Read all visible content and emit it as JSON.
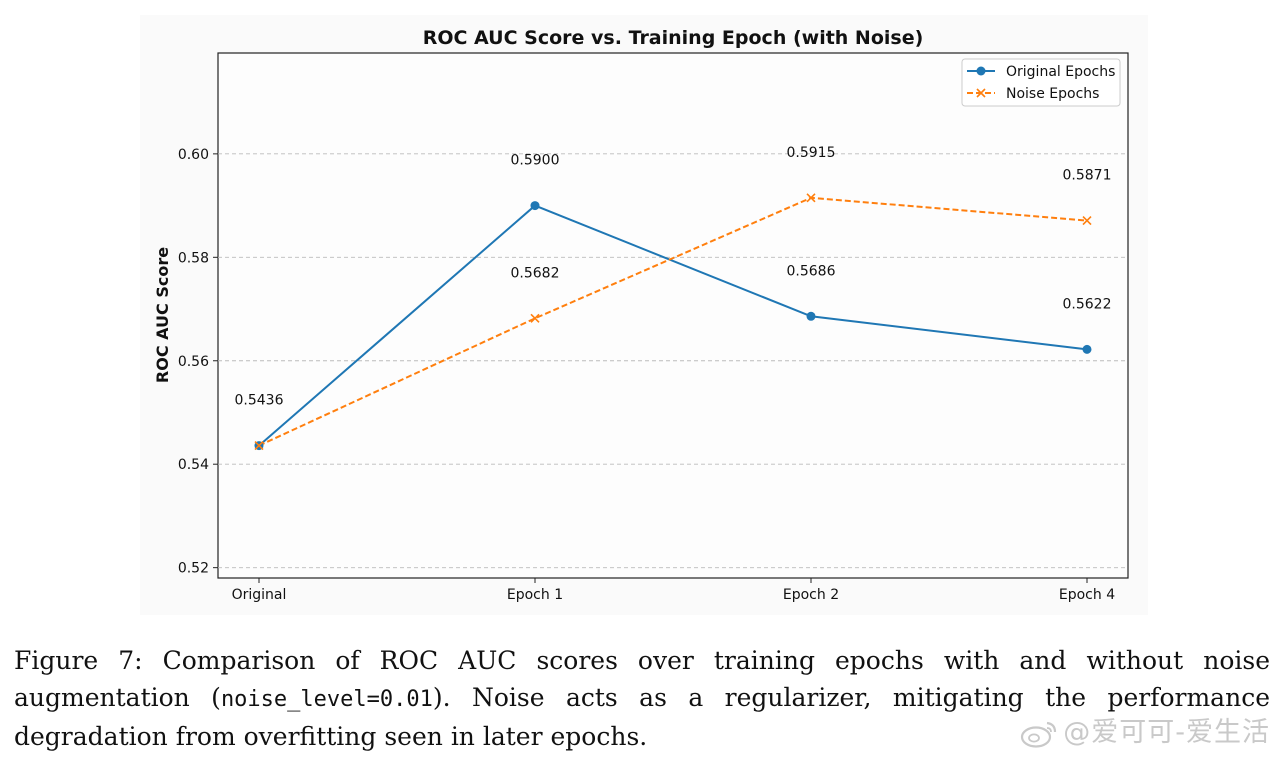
{
  "chart_data": {
    "type": "line",
    "title": "ROC AUC Score vs. Training Epoch (with Noise)",
    "xlabel": "",
    "ylabel": "ROC AUC Score",
    "categories": [
      "Original",
      "Epoch 1",
      "Epoch 2",
      "Epoch 4"
    ],
    "ylim": [
      0.518,
      0.6195
    ],
    "yticks": [
      0.52,
      0.54,
      0.56,
      0.58,
      0.6
    ],
    "ytick_labels": [
      "0.52",
      "0.54",
      "0.56",
      "0.58",
      "0.60"
    ],
    "grid": "horizontal dashed",
    "legend_position": "upper right",
    "series": [
      {
        "name": "Original Epochs",
        "values": [
          0.5436,
          0.59,
          0.5686,
          0.5622
        ],
        "labels": [
          "0.5436",
          "0.5900",
          "0.5686",
          "0.5622"
        ],
        "color": "#1f77b4",
        "style": "solid",
        "marker": "circle"
      },
      {
        "name": "Noise Epochs",
        "values": [
          0.5436,
          0.5682,
          0.5915,
          0.5871
        ],
        "labels": [
          "",
          "0.5682",
          "0.5915",
          "0.5871"
        ],
        "color": "#ff7f0e",
        "style": "dashed",
        "marker": "x"
      }
    ]
  },
  "caption": {
    "prefix": "Figure 7: Comparison of ROC AUC scores over training epochs with and without noise augmentation (",
    "code": "noise_level=0.01",
    "suffix": "). Noise acts as a regularizer, mitigating the performance degradation from overfitting seen in later epochs."
  },
  "watermark": {
    "text": "@爱可可-爱生活",
    "icon": "weibo-logo-icon"
  }
}
